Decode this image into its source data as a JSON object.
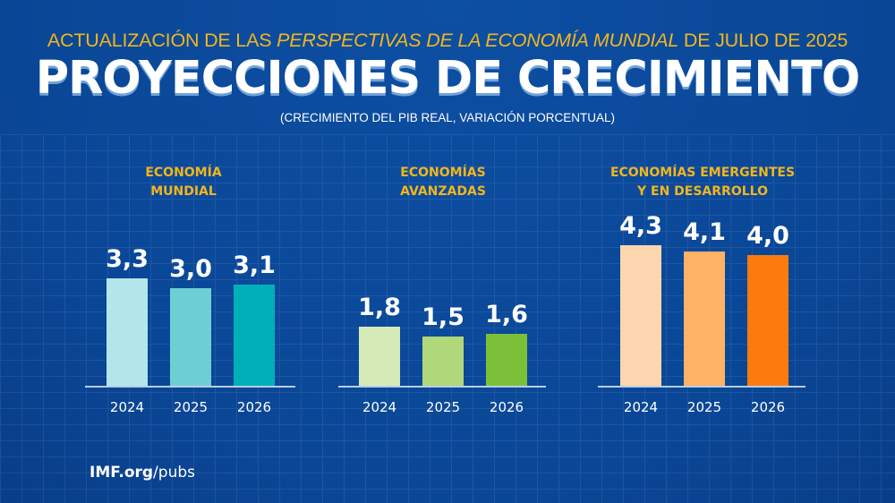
{
  "header": {
    "kicker_pre": "ACTUALIZACIÓN DE LAS ",
    "kicker_italic": "PERSPECTIVAS DE LA ECONOMÍA MUNDIAL",
    "kicker_post": " DE JULIO DE 2025",
    "title": "PROYECCIONES DE CRECIMIENTO",
    "subtitle": "(CRECIMIENTO DEL PIB REAL, VARIACIÓN PORCENTUAL)"
  },
  "footer": {
    "bold": "IMF.org",
    "rest": "/pubs"
  },
  "chart_data": [
    {
      "type": "bar",
      "title_lines": [
        "ECONOMÍA",
        "MUNDIAL"
      ],
      "categories": [
        "2024",
        "2025",
        "2026"
      ],
      "values": [
        3.3,
        3.0,
        3.1
      ],
      "labels": [
        "3,3",
        "3,0",
        "3,1"
      ],
      "colors": [
        "#b3e6ea",
        "#6dcfd3",
        "#00b0b9"
      ],
      "ylim": [
        0,
        4.3
      ]
    },
    {
      "type": "bar",
      "title_lines": [
        "ECONOMÍAS",
        "AVANZADAS"
      ],
      "categories": [
        "2024",
        "2025",
        "2026"
      ],
      "values": [
        1.8,
        1.5,
        1.6
      ],
      "labels": [
        "1,8",
        "1,5",
        "1,6"
      ],
      "colors": [
        "#d6eab8",
        "#b0d87a",
        "#7cc03a"
      ],
      "ylim": [
        0,
        4.3
      ]
    },
    {
      "type": "bar",
      "title_lines": [
        "ECONOMÍAS EMERGENTES",
        "Y EN DESARROLLO"
      ],
      "categories": [
        "2024",
        "2025",
        "2026"
      ],
      "values": [
        4.3,
        4.1,
        4.0
      ],
      "labels": [
        "4,3",
        "4,1",
        "4,0"
      ],
      "colors": [
        "#fdd5ae",
        "#fdb265",
        "#fb7c0c"
      ],
      "ylim": [
        0,
        4.3
      ]
    }
  ]
}
